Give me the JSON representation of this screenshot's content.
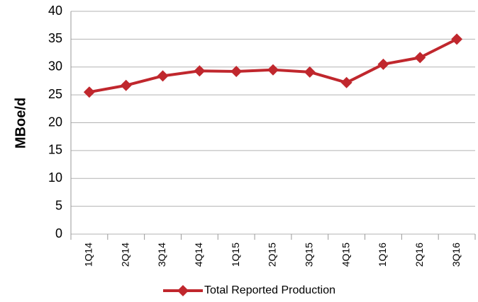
{
  "chart_data": {
    "type": "line",
    "y_label": "MBoe/d",
    "categories": [
      "1Q14",
      "2Q14",
      "3Q14",
      "4Q14",
      "1Q15",
      "2Q15",
      "3Q15",
      "4Q15",
      "1Q16",
      "2Q16",
      "3Q16"
    ],
    "series": [
      {
        "name": "Total Reported Production",
        "color": "#c0272d",
        "values": [
          25.5,
          26.7,
          28.4,
          29.3,
          29.2,
          29.5,
          29.1,
          27.2,
          30.5,
          31.7,
          35.0
        ]
      }
    ],
    "ylim": [
      0,
      40
    ],
    "yticks": [
      0,
      5,
      10,
      15,
      20,
      25,
      30,
      35,
      40
    ],
    "grid": true,
    "legend": "bottom"
  }
}
